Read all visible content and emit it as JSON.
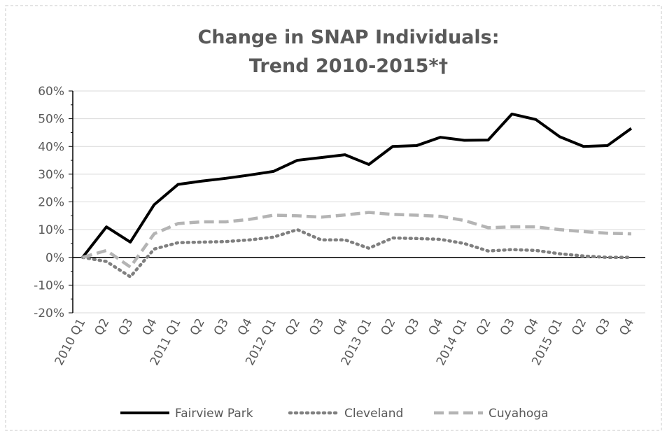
{
  "chart_data": {
    "type": "line",
    "title": [
      "Change in SNAP Individuals:",
      "Trend 2010-2015*†"
    ],
    "categories": [
      "2010 Q1",
      "Q2",
      "Q3",
      "Q4",
      "2011 Q1",
      "Q2",
      "Q3",
      "Q4",
      "2012 Q1",
      "Q2",
      "Q3",
      "Q4",
      "2013 Q1",
      "Q2",
      "Q3",
      "Q4",
      "2014 Q1",
      "Q2",
      "Q3",
      "Q4",
      "2015 Q1",
      "Q2",
      "Q3",
      "Q4"
    ],
    "series": [
      {
        "name": "Fairview Park",
        "color": "#000000",
        "style": "solid",
        "values": [
          0,
          11,
          5.5,
          19,
          26.3,
          27.5,
          28.5,
          29.7,
          31,
          35,
          36,
          37,
          33.5,
          40,
          40.3,
          43.3,
          42.2,
          42.3,
          51.7,
          49.7,
          43.5,
          40,
          40.3,
          46.5
        ]
      },
      {
        "name": "Cleveland",
        "color": "#7f7f7f",
        "style": "dotted",
        "values": [
          0,
          -1.5,
          -7,
          3,
          5.3,
          5.5,
          5.7,
          6.3,
          7.3,
          10,
          6.3,
          6.3,
          3.3,
          7,
          6.8,
          6.5,
          5,
          2.3,
          2.8,
          2.5,
          1.3,
          0.5,
          0,
          0
        ]
      },
      {
        "name": "Cuyahoga",
        "color": "#b4b4b4",
        "style": "dashed",
        "values": [
          0,
          2.5,
          -3.5,
          8.5,
          12.2,
          12.8,
          12.8,
          13.7,
          15.2,
          15,
          14.5,
          15.3,
          16.2,
          15.5,
          15.2,
          14.8,
          13.3,
          10.7,
          11,
          11,
          10,
          9.3,
          8.7,
          8.5
        ]
      }
    ],
    "ylim": [
      -20,
      60
    ],
    "yticks": [
      {
        "value": -20,
        "label": "-20%"
      },
      {
        "value": -10,
        "label": "-10%"
      },
      {
        "value": 0,
        "label": "0%"
      },
      {
        "value": 10,
        "label": "10%"
      },
      {
        "value": 20,
        "label": "20%"
      },
      {
        "value": 30,
        "label": "30%"
      },
      {
        "value": 40,
        "label": "40%"
      },
      {
        "value": 50,
        "label": "50%"
      },
      {
        "value": 60,
        "label": "60%"
      }
    ],
    "grid": true,
    "legend": "bottom"
  }
}
